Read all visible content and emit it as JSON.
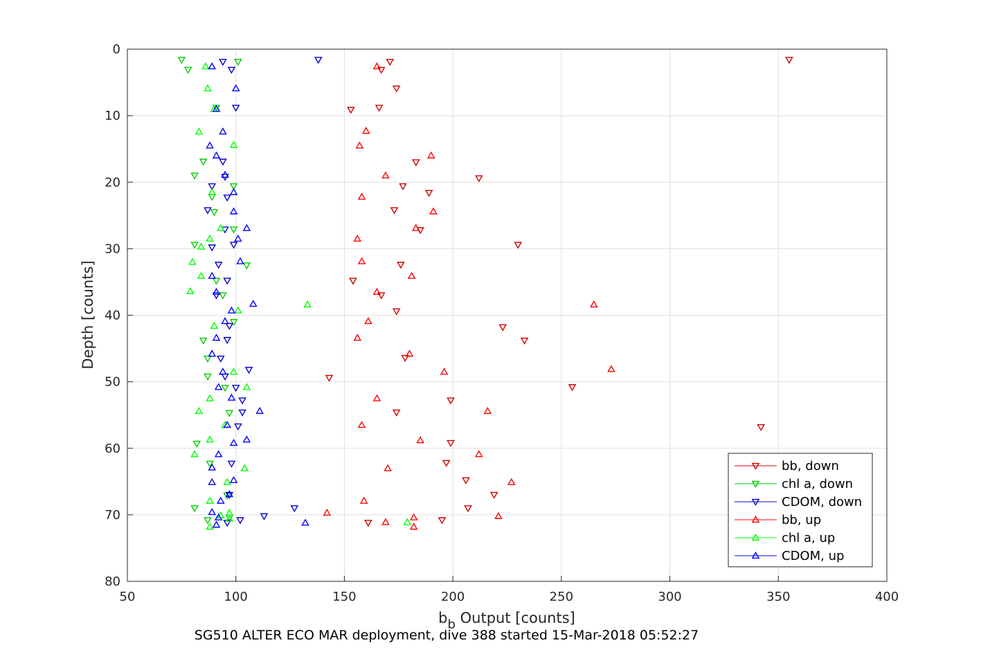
{
  "chart_data": {
    "type": "scatter",
    "caption": "SG510 ALTER ECO MAR deployment, dive 388 started 15-Mar-2018 05:52:27",
    "xlabel_main": "b",
    "xlabel_sub": "b",
    "xlabel_rest": " Output [counts]",
    "ylabel": "Depth [counts]",
    "xlim": [
      50,
      400
    ],
    "ylim": [
      0,
      80
    ],
    "y_reversed": true,
    "grid": true,
    "legend_position": "bottom-right",
    "xticks": [
      "50",
      "100",
      "150",
      "200",
      "250",
      "300",
      "350",
      "400"
    ],
    "yticks": [
      "0",
      "10",
      "20",
      "30",
      "40",
      "50",
      "60",
      "70",
      "80"
    ],
    "series": [
      {
        "name": "bb, down",
        "color": "#cc0000",
        "marker": "triangle-down",
        "points": [
          [
            355,
            1.6
          ],
          [
            171,
            1.9
          ],
          [
            167,
            3.1
          ],
          [
            174,
            5.9
          ],
          [
            166,
            8.8
          ],
          [
            153,
            9.1
          ],
          [
            183,
            17.0
          ],
          [
            212,
            19.4
          ],
          [
            177,
            20.6
          ],
          [
            189,
            21.6
          ],
          [
            173,
            24.2
          ],
          [
            185,
            27.2
          ],
          [
            230,
            29.4
          ],
          [
            176,
            32.4
          ],
          [
            154,
            34.8
          ],
          [
            167,
            37.0
          ],
          [
            174,
            39.4
          ],
          [
            223,
            41.8
          ],
          [
            233,
            43.8
          ],
          [
            178,
            46.4
          ],
          [
            143,
            49.4
          ],
          [
            255,
            50.8
          ],
          [
            199,
            52.8
          ],
          [
            174,
            54.6
          ],
          [
            342,
            56.8
          ],
          [
            199,
            59.2
          ],
          [
            197,
            62.2
          ],
          [
            206,
            64.8
          ],
          [
            219,
            67.0
          ],
          [
            207,
            69.0
          ],
          [
            195,
            70.8
          ],
          [
            161,
            71.2
          ]
        ]
      },
      {
        "name": "chl a, down",
        "color": "#00cc00",
        "marker": "triangle-down",
        "points": [
          [
            75,
            1.6
          ],
          [
            101,
            1.9
          ],
          [
            78,
            3.1
          ],
          [
            91,
            8.8
          ],
          [
            85,
            16.9
          ],
          [
            81,
            19.0
          ],
          [
            99,
            20.6
          ],
          [
            89,
            22.2
          ],
          [
            90,
            24.5
          ],
          [
            99,
            27.1
          ],
          [
            81,
            29.4
          ],
          [
            105,
            32.5
          ],
          [
            91,
            34.8
          ],
          [
            94,
            37.0
          ],
          [
            99,
            41.0
          ],
          [
            85,
            43.8
          ],
          [
            87,
            46.5
          ],
          [
            87,
            49.2
          ],
          [
            95,
            50.9
          ],
          [
            97,
            54.7
          ],
          [
            82,
            59.3
          ],
          [
            88,
            62.3
          ],
          [
            96,
            67.1
          ],
          [
            81,
            69.0
          ],
          [
            87,
            70.8
          ],
          [
            97,
            70.4
          ]
        ]
      },
      {
        "name": "CDOM, down",
        "color": "#0000cc",
        "marker": "triangle-down",
        "points": [
          [
            138,
            1.6
          ],
          [
            94,
            1.9
          ],
          [
            98,
            3.1
          ],
          [
            100,
            8.8
          ],
          [
            94,
            16.9
          ],
          [
            95,
            19.2
          ],
          [
            89,
            20.6
          ],
          [
            96,
            22.3
          ],
          [
            87,
            24.2
          ],
          [
            95,
            27.1
          ],
          [
            99,
            29.4
          ],
          [
            89,
            29.8
          ],
          [
            92,
            32.4
          ],
          [
            96,
            34.8
          ],
          [
            91,
            37.0
          ],
          [
            97,
            41.6
          ],
          [
            96,
            43.7
          ],
          [
            93,
            46.5
          ],
          [
            106,
            48.2
          ],
          [
            95,
            49.2
          ],
          [
            100,
            50.9
          ],
          [
            103,
            52.8
          ],
          [
            103,
            54.6
          ],
          [
            101,
            56.7
          ],
          [
            98,
            62.3
          ],
          [
            97,
            67.0
          ],
          [
            127,
            69.0
          ],
          [
            113,
            70.2
          ],
          [
            102,
            70.8
          ],
          [
            96,
            71.2
          ]
        ]
      },
      {
        "name": "bb, up",
        "color": "#ff0000",
        "marker": "triangle-up",
        "points": [
          [
            165,
            2.6
          ],
          [
            160,
            12.3
          ],
          [
            157,
            14.5
          ],
          [
            190,
            16.0
          ],
          [
            169,
            19.0
          ],
          [
            158,
            22.2
          ],
          [
            191,
            24.4
          ],
          [
            183,
            26.9
          ],
          [
            156,
            28.5
          ],
          [
            158,
            31.9
          ],
          [
            181,
            34.1
          ],
          [
            165,
            36.5
          ],
          [
            265,
            38.4
          ],
          [
            161,
            40.9
          ],
          [
            156,
            43.4
          ],
          [
            180,
            45.8
          ],
          [
            196,
            48.5
          ],
          [
            273,
            48.1
          ],
          [
            165,
            52.5
          ],
          [
            216,
            54.4
          ],
          [
            158,
            56.5
          ],
          [
            185,
            58.8
          ],
          [
            212,
            60.9
          ],
          [
            170,
            63.0
          ],
          [
            227,
            65.1
          ],
          [
            159,
            67.9
          ],
          [
            142,
            69.7
          ],
          [
            221,
            70.2
          ],
          [
            182,
            70.4
          ],
          [
            169,
            71.1
          ],
          [
            182,
            71.8
          ]
        ]
      },
      {
        "name": "chl a, up",
        "color": "#00ff00",
        "marker": "triangle-up",
        "points": [
          [
            86,
            2.6
          ],
          [
            87,
            5.9
          ],
          [
            90,
            9.0
          ],
          [
            83,
            12.4
          ],
          [
            99,
            14.4
          ],
          [
            89,
            21.5
          ],
          [
            93,
            26.9
          ],
          [
            88,
            28.5
          ],
          [
            84,
            29.7
          ],
          [
            80,
            32.0
          ],
          [
            84,
            34.1
          ],
          [
            79,
            36.4
          ],
          [
            133,
            38.4
          ],
          [
            101,
            39.3
          ],
          [
            90,
            41.6
          ],
          [
            89,
            45.8
          ],
          [
            99,
            48.5
          ],
          [
            105,
            50.8
          ],
          [
            88,
            52.5
          ],
          [
            83,
            54.4
          ],
          [
            95,
            56.5
          ],
          [
            88,
            58.7
          ],
          [
            81,
            60.9
          ],
          [
            104,
            63.0
          ],
          [
            96,
            65.1
          ],
          [
            88,
            67.9
          ],
          [
            97,
            69.7
          ],
          [
            93,
            70.1
          ],
          [
            97,
            70.6
          ],
          [
            88,
            71.8
          ],
          [
            179,
            71.1
          ]
        ]
      },
      {
        "name": "CDOM, up",
        "color": "#0000ff",
        "marker": "triangle-up",
        "points": [
          [
            89,
            2.6
          ],
          [
            100,
            5.9
          ],
          [
            91,
            9.0
          ],
          [
            94,
            12.4
          ],
          [
            88,
            14.5
          ],
          [
            91,
            16.0
          ],
          [
            95,
            18.9
          ],
          [
            99,
            21.5
          ],
          [
            99,
            24.4
          ],
          [
            105,
            26.9
          ],
          [
            101,
            28.5
          ],
          [
            102,
            31.9
          ],
          [
            89,
            34.1
          ],
          [
            91,
            36.5
          ],
          [
            108,
            38.3
          ],
          [
            98,
            39.3
          ],
          [
            95,
            40.9
          ],
          [
            91,
            43.4
          ],
          [
            89,
            45.8
          ],
          [
            94,
            48.5
          ],
          [
            92,
            50.8
          ],
          [
            98,
            52.4
          ],
          [
            111,
            54.4
          ],
          [
            96,
            56.5
          ],
          [
            105,
            58.7
          ],
          [
            92,
            60.9
          ],
          [
            89,
            62.9
          ],
          [
            89,
            65.1
          ],
          [
            99,
            64.8
          ],
          [
            93,
            67.9
          ],
          [
            89,
            69.6
          ],
          [
            92,
            70.4
          ],
          [
            132,
            71.2
          ],
          [
            91,
            71.5
          ],
          [
            97,
            66.9
          ],
          [
            99,
            59.2
          ]
        ]
      }
    ]
  }
}
